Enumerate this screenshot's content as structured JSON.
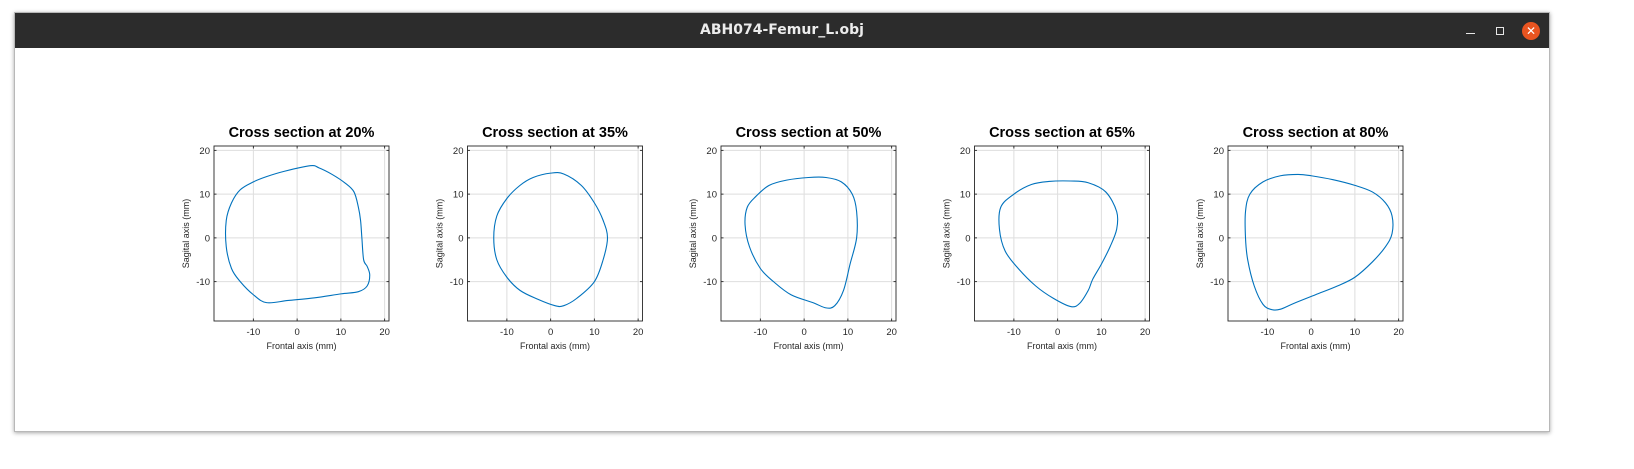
{
  "window": {
    "title": "ABH074-Femur_L.obj",
    "controls": {
      "minimize_icon": "minimize-icon",
      "maximize_icon": "maximize-icon",
      "close_icon": "close-icon",
      "close_color": "#e95420"
    }
  },
  "colors": {
    "curve": "#0072bd",
    "grid": "#dedede",
    "axes": "#262626",
    "titlebar": "#2c2c2c"
  },
  "chart_data": [
    {
      "type": "line",
      "title": "Cross section at 20%",
      "xlabel": "Frontal axis (mm)",
      "ylabel": "Sagital axis (mm)",
      "xlim": [
        -19,
        21
      ],
      "ylim": [
        -19,
        21
      ],
      "xticks": [
        -10,
        0,
        10,
        20
      ],
      "yticks": [
        -10,
        0,
        10,
        20
      ],
      "grid": true,
      "x": [
        3,
        5,
        8,
        11,
        13,
        14,
        14.5,
        14.8,
        15.2,
        16,
        16.6,
        16,
        14,
        10,
        4,
        -2,
        -7,
        -10,
        -13,
        -15,
        -16.2,
        -16.2,
        -15,
        -13,
        -10,
        -7,
        -3,
        3
      ],
      "y": [
        16.5,
        16,
        14.5,
        12.5,
        10.5,
        7,
        4,
        0,
        -5,
        -6.5,
        -8.5,
        -11,
        -12.3,
        -12.8,
        -13.7,
        -14.3,
        -14.8,
        -13,
        -10,
        -7,
        -2,
        4,
        8,
        11,
        12.8,
        14,
        15.2,
        16.5
      ]
    },
    {
      "type": "line",
      "title": "Cross section at 35%",
      "xlabel": "Frontal axis (mm)",
      "ylabel": "Sagital axis (mm)",
      "xlim": [
        -19,
        21
      ],
      "ylim": [
        -19,
        21
      ],
      "xticks": [
        -10,
        0,
        10,
        20
      ],
      "yticks": [
        -10,
        0,
        10,
        20
      ],
      "grid": true,
      "x": [
        0,
        3,
        7,
        10,
        12,
        13,
        12,
        10,
        6,
        3,
        1,
        -3,
        -7,
        -10,
        -12.3,
        -13,
        -12.3,
        -10,
        -7,
        -4,
        0
      ],
      "y": [
        14.8,
        14.6,
        12,
        8,
        4,
        0,
        -5,
        -10,
        -13.8,
        -15.5,
        -15.5,
        -14,
        -12,
        -9,
        -5,
        0,
        5,
        9,
        12,
        13.8,
        14.8
      ]
    },
    {
      "type": "line",
      "title": "Cross section at 50%",
      "xlabel": "Frontal axis (mm)",
      "ylabel": "Sagital axis (mm)",
      "xlim": [
        -19,
        21
      ],
      "ylim": [
        -19,
        21
      ],
      "xticks": [
        -10,
        0,
        10,
        20
      ],
      "yticks": [
        -10,
        0,
        10,
        20
      ],
      "grid": true,
      "x": [
        -13,
        -11,
        -8,
        -4,
        1,
        5,
        8.5,
        11,
        12,
        12,
        10.5,
        9,
        7,
        5,
        2,
        -3,
        -7,
        -10,
        -12.5,
        -13.5,
        -13
      ],
      "y": [
        7,
        9.5,
        12,
        13.2,
        13.8,
        13.8,
        12.8,
        10,
        6,
        0,
        -6,
        -12,
        -15.5,
        -16,
        -14.8,
        -13,
        -10,
        -7,
        -2,
        3,
        7
      ]
    },
    {
      "type": "line",
      "title": "Cross section at 65%",
      "xlabel": "Frontal axis (mm)",
      "ylabel": "Sagital axis (mm)",
      "xlim": [
        -19,
        21
      ],
      "ylim": [
        -19,
        21
      ],
      "xticks": [
        -10,
        0,
        10,
        20
      ],
      "yticks": [
        -10,
        0,
        10,
        20
      ],
      "grid": true,
      "x": [
        -13,
        -10,
        -6,
        -2,
        3,
        7,
        11,
        13.5,
        13.5,
        12,
        10,
        8,
        7,
        5,
        3,
        -1,
        -5,
        -9,
        -12,
        -13.3,
        -13
      ],
      "y": [
        7,
        10,
        12.2,
        12.9,
        13,
        12.6,
        10.5,
        6,
        2,
        -2,
        -6,
        -9.5,
        -12,
        -15,
        -15.7,
        -13.8,
        -11,
        -7,
        -3,
        2,
        7
      ]
    },
    {
      "type": "line",
      "title": "Cross section at 80%",
      "xlabel": "Frontal axis (mm)",
      "ylabel": "Sagital axis (mm)",
      "xlim": [
        -19,
        21
      ],
      "ylim": [
        -19,
        21
      ],
      "xticks": [
        -10,
        0,
        10,
        20
      ],
      "yticks": [
        -10,
        0,
        10,
        20
      ],
      "grid": true,
      "x": [
        -14,
        -11,
        -7,
        -3,
        0,
        5,
        10,
        14,
        17,
        18.5,
        18.5,
        17,
        14,
        10,
        6,
        1,
        -4,
        -7,
        -9,
        -11,
        -13,
        -14.5,
        -15,
        -15,
        -14
      ],
      "y": [
        10,
        12.8,
        14.2,
        14.5,
        14.2,
        13.3,
        12,
        10.5,
        8,
        5,
        1,
        -2,
        -5.5,
        -9,
        -11,
        -13,
        -15,
        -16.3,
        -16.4,
        -15.2,
        -11,
        -5,
        0,
        6,
        10
      ]
    }
  ]
}
